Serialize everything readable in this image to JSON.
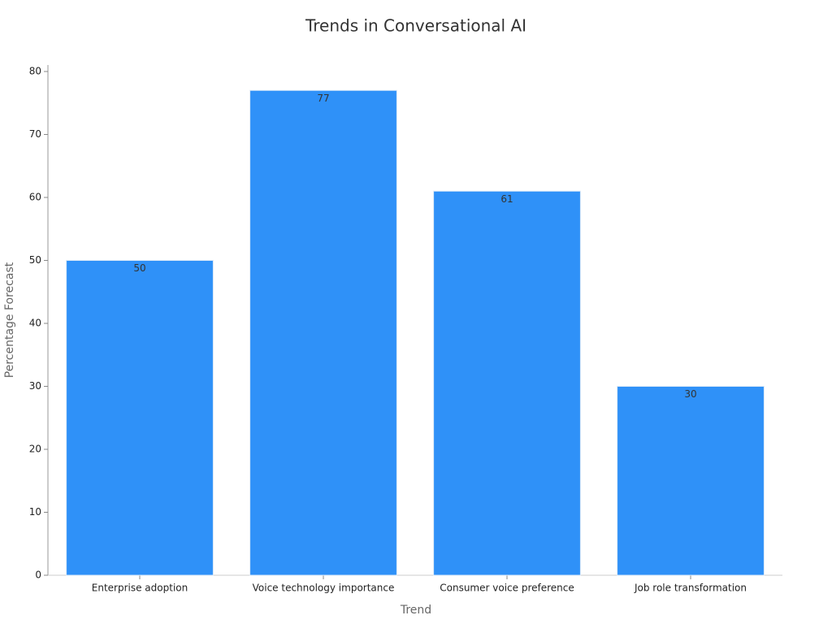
{
  "chart_data": {
    "type": "bar",
    "title": "Trends in Conversational AI",
    "x_label": "Trend",
    "y_label": "Percentage Forecast",
    "categories": [
      "Enterprise adoption",
      "Voice technology importance",
      "Consumer voice preference",
      "Job role transformation"
    ],
    "values": [
      50,
      77,
      61,
      30
    ],
    "color": "#2f91f8",
    "ylim": [
      0,
      80
    ],
    "yticks": [
      0,
      10,
      20,
      30,
      40,
      50,
      60,
      70,
      80
    ],
    "grid": false
  }
}
